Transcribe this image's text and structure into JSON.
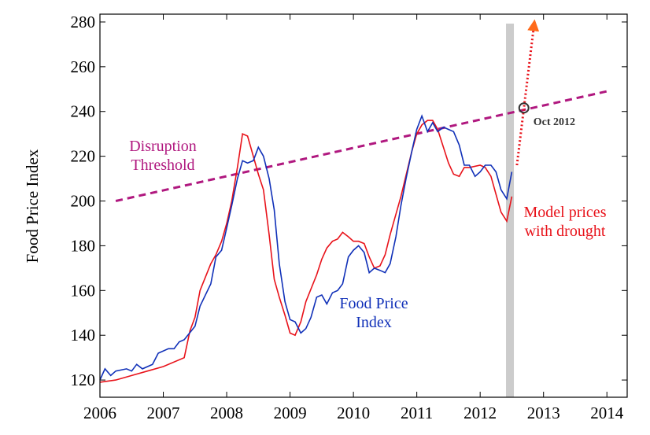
{
  "chart_data": {
    "type": "line",
    "ylabel": "Food Price Index",
    "xlim": [
      2006,
      2014.32
    ],
    "ylim": [
      112.3,
      283.5
    ],
    "xticks": [
      2006,
      2007,
      2008,
      2009,
      2010,
      2011,
      2012,
      2013,
      2014
    ],
    "yticks": [
      120,
      140,
      160,
      180,
      200,
      220,
      240,
      260,
      280
    ],
    "vband": {
      "x": 2012.47,
      "color": "#cccccc"
    },
    "series": [
      {
        "name": "Disruption Threshold",
        "color": "#b0187f",
        "dash": "dashed",
        "x": [
          2006.25,
          2014
        ],
        "values": [
          200,
          249
        ]
      },
      {
        "name": "Model prices with drought",
        "color": "#e8121a",
        "dash": "solid",
        "x": [
          2006.0,
          2006.25,
          2006.5,
          2006.75,
          2007.0,
          2007.33,
          2007.42,
          2007.5,
          2007.58,
          2007.75,
          2007.83,
          2007.92,
          2008.0,
          2008.08,
          2008.17,
          2008.25,
          2008.33,
          2008.42,
          2008.5,
          2008.58,
          2008.67,
          2008.75,
          2008.83,
          2008.92,
          2009.0,
          2009.08,
          2009.17,
          2009.25,
          2009.42,
          2009.5,
          2009.58,
          2009.67,
          2009.75,
          2009.83,
          2009.92,
          2010.0,
          2010.08,
          2010.17,
          2010.25,
          2010.33,
          2010.42,
          2010.5,
          2010.58,
          2010.75,
          2010.92,
          2011.0,
          2011.08,
          2011.17,
          2011.25,
          2011.33,
          2011.42,
          2011.5,
          2011.58,
          2011.67,
          2011.75,
          2011.83,
          2012.0,
          2012.08,
          2012.17,
          2012.25,
          2012.33,
          2012.42,
          2012.5
        ],
        "values": [
          119,
          120,
          122,
          124,
          126,
          130,
          142,
          148,
          160,
          172,
          176,
          182,
          190,
          200,
          215,
          230,
          229,
          220,
          212,
          205,
          185,
          165,
          157,
          149,
          141,
          140,
          146,
          155,
          167,
          174,
          179,
          182,
          183,
          186,
          184,
          182,
          182,
          181,
          175,
          170,
          171,
          176,
          185,
          202,
          222,
          230,
          234,
          236,
          236,
          232,
          224,
          217,
          212,
          211,
          215,
          215,
          216,
          215,
          211,
          203,
          195,
          191,
          202
        ]
      },
      {
        "name": "Food Price Index",
        "color": "#1030b8",
        "dash": "solid",
        "x": [
          2006.0,
          2006.08,
          2006.17,
          2006.25,
          2006.42,
          2006.5,
          2006.58,
          2006.67,
          2006.83,
          2006.92,
          2007.08,
          2007.17,
          2007.25,
          2007.33,
          2007.5,
          2007.58,
          2007.75,
          2007.83,
          2007.92,
          2008.0,
          2008.08,
          2008.17,
          2008.25,
          2008.33,
          2008.42,
          2008.5,
          2008.58,
          2008.67,
          2008.75,
          2008.83,
          2008.92,
          2009.0,
          2009.08,
          2009.17,
          2009.25,
          2009.33,
          2009.42,
          2009.5,
          2009.58,
          2009.67,
          2009.75,
          2009.83,
          2009.92,
          2010.0,
          2010.08,
          2010.17,
          2010.25,
          2010.33,
          2010.42,
          2010.5,
          2010.58,
          2010.67,
          2010.75,
          2010.83,
          2010.92,
          2011.0,
          2011.08,
          2011.17,
          2011.25,
          2011.33,
          2011.42,
          2011.5,
          2011.58,
          2011.67,
          2011.75,
          2011.83,
          2011.92,
          2012.0,
          2012.08,
          2012.17,
          2012.25,
          2012.33,
          2012.42,
          2012.5
        ],
        "values": [
          120,
          125,
          122,
          124,
          125,
          124,
          127,
          125,
          127,
          132,
          134,
          134,
          137,
          138,
          144,
          153,
          163,
          175,
          178,
          188,
          198,
          210,
          218,
          217,
          218,
          224,
          220,
          210,
          196,
          172,
          155,
          147,
          146,
          141,
          143,
          148,
          157,
          158,
          154,
          159,
          160,
          163,
          175,
          178,
          180,
          177,
          168,
          170,
          169,
          168,
          172,
          184,
          198,
          210,
          222,
          232,
          238,
          231,
          235,
          231,
          233,
          232,
          231,
          225,
          216,
          216,
          211,
          213,
          216,
          216,
          213,
          205,
          201,
          213
        ]
      },
      {
        "color": "#e8121a",
        "dash": "dotted",
        "arrow": true,
        "x": [
          2012.58,
          2012.85
        ],
        "values": [
          216,
          278.6
        ]
      }
    ],
    "annotations": [
      {
        "text": "Oct 2012",
        "x": 2012.69,
        "y": 241.6
      }
    ]
  }
}
